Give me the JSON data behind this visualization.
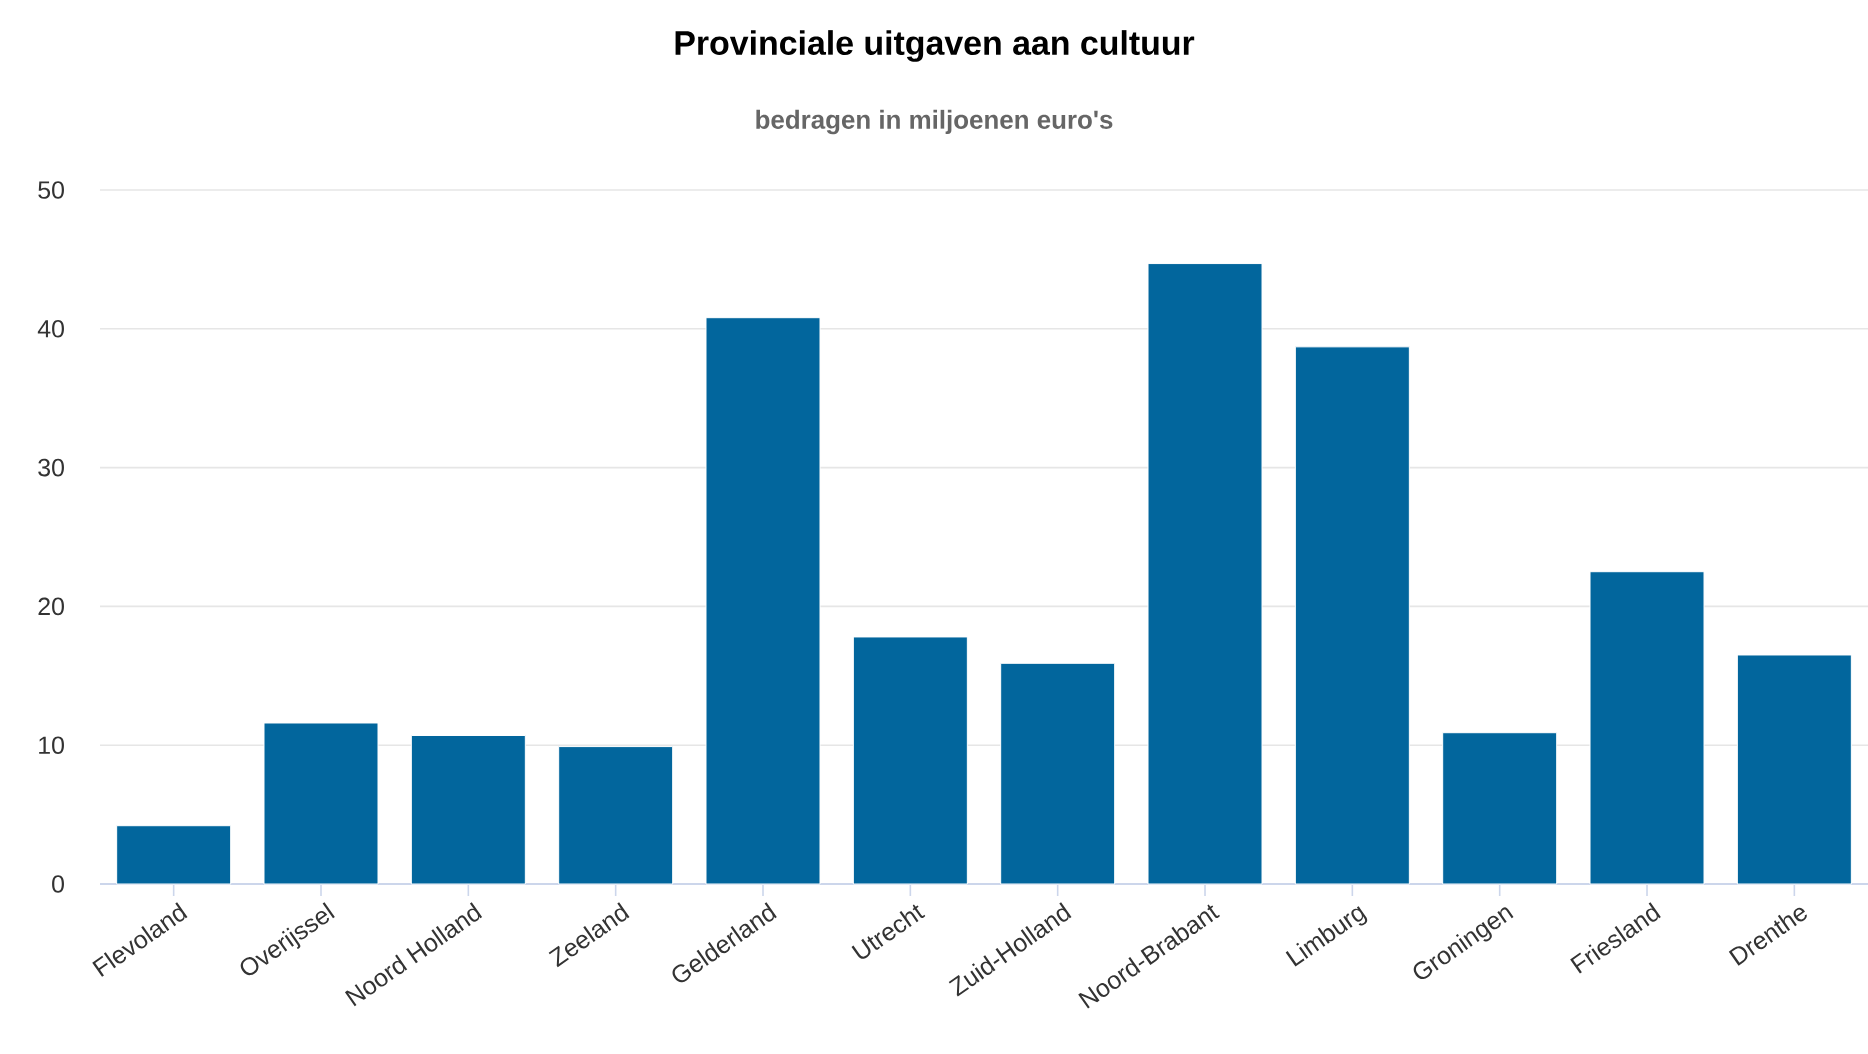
{
  "chart_data": {
    "type": "bar",
    "title": "Provinciale uitgaven aan cultuur",
    "subtitle": "bedragen in miljoenen euro's",
    "categories": [
      "Flevoland",
      "Overijssel",
      "Noord Holland",
      "Zeeland",
      "Gelderland",
      "Utrecht",
      "Zuid-Holland",
      "Noord-Brabant",
      "Limburg",
      "Groningen",
      "Friesland",
      "Drenthe"
    ],
    "values": [
      4.2,
      11.6,
      10.7,
      9.9,
      40.8,
      17.8,
      15.9,
      44.7,
      38.7,
      10.9,
      22.5,
      16.5
    ],
    "color": "#02669d",
    "ylim": [
      0,
      50
    ],
    "yticks": [
      0,
      10,
      20,
      30,
      40,
      50
    ],
    "grid": "y"
  }
}
